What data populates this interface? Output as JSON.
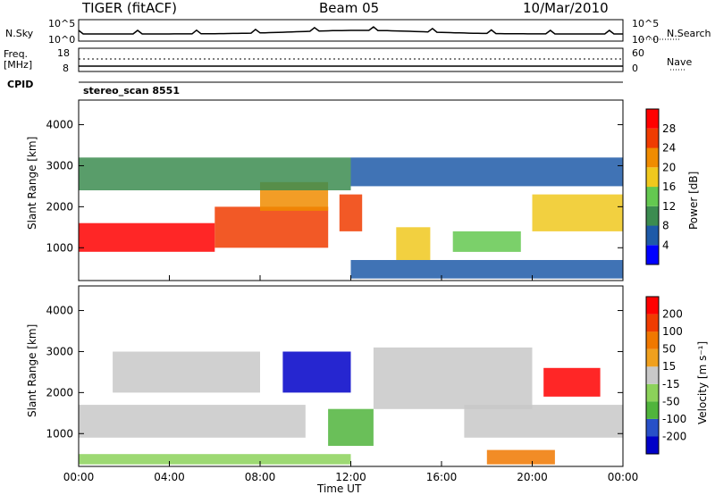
{
  "header": {
    "radar": "TIGER (fitACF)",
    "beam": "Beam 05",
    "date": "10/Mar/2010"
  },
  "summary": {
    "nsky_label": "N.Sky",
    "nsky_ticks": [
      "10^5",
      "10^0"
    ],
    "nsearch_label": "N.Search",
    "nsearch_ticks": [
      "10^5",
      "10^0"
    ],
    "freq_label_1": "Freq.",
    "freq_label_2": "[MHz]",
    "freq_ticks": [
      "18",
      "8"
    ],
    "nave_label": "Nave",
    "nave_ticks": [
      "60",
      "0"
    ],
    "cpid_label": "CPID",
    "cpid_value": "stereo_scan 8551"
  },
  "chart_data": [
    {
      "type": "heatmap",
      "panel": "power",
      "ylabel": "Slant Range [km]",
      "ylim": [
        200,
        4600
      ],
      "yticks": [
        "1000",
        "2000",
        "3000",
        "4000"
      ],
      "xlim_hours": [
        0,
        24
      ],
      "colorbar_label": "Power [dB]",
      "colorbar_ticks": [
        "4",
        "8",
        "12",
        "16",
        "20",
        "24",
        "28"
      ],
      "colorbar_colors": [
        "#0000ff",
        "#1e5aa8",
        "#3c8c50",
        "#64c850",
        "#f0c81e",
        "#f08c00",
        "#f03c00",
        "#ff0000"
      ],
      "regions": [
        {
          "t0": 0.0,
          "t1": 6.0,
          "r0": 900,
          "r1": 1600,
          "level": 7
        },
        {
          "t0": 6.0,
          "t1": 11.0,
          "r0": 1000,
          "r1": 2000,
          "level": 6
        },
        {
          "t0": 8.0,
          "t1": 11.0,
          "r0": 1900,
          "r1": 2600,
          "level": 5
        },
        {
          "t0": 0.0,
          "t1": 12.0,
          "r0": 2400,
          "r1": 3200,
          "level": 2
        },
        {
          "t0": 11.5,
          "t1": 12.5,
          "r0": 1400,
          "r1": 2300,
          "level": 6
        },
        {
          "t0": 14.0,
          "t1": 15.5,
          "r0": 700,
          "r1": 1500,
          "level": 4
        },
        {
          "t0": 16.5,
          "t1": 19.5,
          "r0": 900,
          "r1": 1400,
          "level": 3
        },
        {
          "t0": 20.0,
          "t1": 24.0,
          "r0": 1400,
          "r1": 2300,
          "level": 4
        },
        {
          "t0": 12.0,
          "t1": 24.0,
          "r0": 250,
          "r1": 700,
          "level": 1
        },
        {
          "t0": 12.0,
          "t1": 24.0,
          "r0": 2500,
          "r1": 3200,
          "level": 1
        }
      ]
    },
    {
      "type": "heatmap",
      "panel": "velocity",
      "ylabel": "Slant Range [km]",
      "xlabel": "Time UT",
      "ylim": [
        200,
        4600
      ],
      "yticks": [
        "1000",
        "2000",
        "3000",
        "4000"
      ],
      "xticks": [
        "00:00",
        "04:00",
        "08:00",
        "12:00",
        "16:00",
        "20:00",
        "00:00"
      ],
      "xlim_hours": [
        0,
        24
      ],
      "colorbar_label": "Velocity [m s⁻¹]",
      "colorbar_ticks": [
        "200",
        "100",
        "50",
        "15",
        "-15",
        "-50",
        "-100",
        "-200"
      ],
      "colorbar_colors": [
        "#0000c8",
        "#2850c8",
        "#50b43c",
        "#8cd25a",
        "#c8c8c8",
        "#f0a01e",
        "#f07800",
        "#f03c00",
        "#ff0000"
      ],
      "regions": [
        {
          "t0": 0.0,
          "t1": 10.0,
          "r0": 900,
          "r1": 1700,
          "level": 4
        },
        {
          "t0": 1.5,
          "t1": 8.0,
          "r0": 2000,
          "r1": 3000,
          "level": 4
        },
        {
          "t0": 9.0,
          "t1": 12.0,
          "r0": 2000,
          "r1": 3000,
          "level": 0
        },
        {
          "t0": 11.0,
          "t1": 13.0,
          "r0": 700,
          "r1": 1600,
          "level": 2
        },
        {
          "t0": 20.5,
          "t1": 23.0,
          "r0": 1900,
          "r1": 2600,
          "level": 8
        },
        {
          "t0": 17.0,
          "t1": 24.0,
          "r0": 900,
          "r1": 1700,
          "level": 4
        },
        {
          "t0": 18.0,
          "t1": 21.0,
          "r0": 250,
          "r1": 600,
          "level": 6
        },
        {
          "t0": 0.0,
          "t1": 12.0,
          "r0": 250,
          "r1": 500,
          "level": 3
        },
        {
          "t0": 13.0,
          "t1": 20.0,
          "r0": 1600,
          "r1": 3100,
          "level": 4
        }
      ]
    }
  ]
}
